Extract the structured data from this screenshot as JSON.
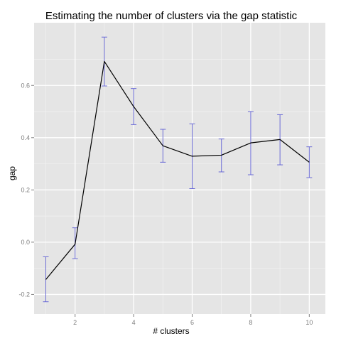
{
  "chart_data": {
    "type": "line",
    "title": "Estimating the number of clusters via the gap statistic",
    "xlabel": "# clusters",
    "ylabel": "gap",
    "x": [
      1,
      2,
      3,
      4,
      5,
      6,
      7,
      8,
      9,
      10
    ],
    "xlim": [
      0.6,
      10.55
    ],
    "ylim": [
      -0.275,
      0.84
    ],
    "x_ticks": [
      2,
      4,
      6,
      8,
      10
    ],
    "x_tick_labels": [
      "2",
      "4",
      "6",
      "8",
      "10"
    ],
    "y_ticks": [
      -0.2,
      0.0,
      0.2,
      0.4,
      0.6
    ],
    "y_tick_labels": [
      "-0.2",
      "0.0",
      "0.2",
      "0.4",
      "0.6"
    ],
    "grid": true,
    "series": [
      {
        "values": [
          -0.143,
          -0.008,
          0.692,
          0.519,
          0.369,
          0.329,
          0.333,
          0.38,
          0.393,
          0.306
        ],
        "error_low": [
          -0.228,
          -0.063,
          0.598,
          0.45,
          0.306,
          0.205,
          0.269,
          0.258,
          0.296,
          0.247
        ],
        "error_high": [
          -0.056,
          0.055,
          0.785,
          0.588,
          0.432,
          0.453,
          0.395,
          0.5,
          0.488,
          0.365
        ],
        "line_color": "#000000",
        "errorbar_color": "#6b6bd6"
      }
    ],
    "colors": {
      "panel_background": "#e5e5e5",
      "grid_major": "#ffffff",
      "grid_minor": "#f2f2f2"
    }
  }
}
